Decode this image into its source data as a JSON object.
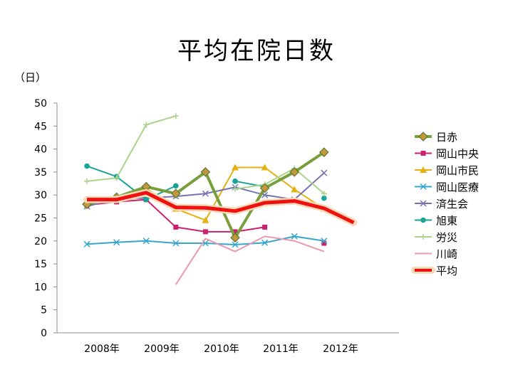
{
  "chart_data": {
    "type": "line",
    "title": "平均在院日数",
    "unit_label": "（日）",
    "ylim": [
      0,
      50
    ],
    "y_ticks": [
      0,
      5,
      10,
      15,
      20,
      25,
      30,
      35,
      40,
      45,
      50
    ],
    "x_period_labels": [
      "2008年",
      "2009年",
      "2010年",
      "2011年",
      "2012年"
    ],
    "grid": false,
    "legend_position": "right",
    "series": [
      {
        "name": "日赤",
        "color": "#77a03c",
        "marker": "diamond",
        "width": 4,
        "values": [
          28.0,
          29.5,
          31.8,
          30.3,
          35.0,
          20.7,
          31.5,
          35.0,
          39.3,
          null
        ]
      },
      {
        "name": "岡山中央",
        "color": "#cc1f6e",
        "marker": "square",
        "width": 2,
        "values": [
          27.8,
          28.5,
          29.0,
          23.0,
          22.0,
          22.0,
          23.0,
          null,
          19.5,
          null
        ]
      },
      {
        "name": "岡山市民",
        "color": "#e6b010",
        "marker": "triangle",
        "width": 2,
        "values": [
          28.5,
          29.5,
          31.5,
          27.0,
          24.5,
          36.0,
          36.0,
          31.2,
          27.0,
          null
        ]
      },
      {
        "name": "岡山医療",
        "color": "#36a6cc",
        "marker": "x",
        "width": 2,
        "values": [
          19.3,
          19.7,
          20.0,
          19.5,
          19.5,
          19.2,
          19.6,
          21.0,
          20.0,
          null
        ]
      },
      {
        "name": "済生会",
        "color": "#7474b0",
        "marker": "x",
        "width": 2,
        "values": [
          27.5,
          29.3,
          29.3,
          29.7,
          30.3,
          31.7,
          30.0,
          29.0,
          34.8,
          null
        ]
      },
      {
        "name": "旭東",
        "color": "#17a497",
        "marker": "circle",
        "width": 2,
        "values": [
          36.3,
          34.0,
          29.0,
          32.0,
          null,
          33.0,
          31.8,
          null,
          29.3,
          null
        ]
      },
      {
        "name": "労災",
        "color": "#a8d48a",
        "marker": "plus",
        "width": 2,
        "values": [
          33.0,
          33.7,
          45.3,
          47.2,
          null,
          31.3,
          32.3,
          35.8,
          30.3,
          null
        ]
      },
      {
        "name": "川崎",
        "color": "#ec98ac",
        "marker": "none",
        "width": 2,
        "values": [
          null,
          null,
          null,
          10.5,
          20.5,
          17.7,
          21.0,
          20.0,
          17.7,
          null
        ]
      },
      {
        "name": "平均",
        "color": "#ee1111",
        "marker": "none",
        "width": 5,
        "outline": "#fbd8b6",
        "values": [
          29.0,
          29.0,
          30.5,
          27.3,
          27.2,
          26.5,
          28.3,
          28.7,
          27.1,
          24.0
        ]
      }
    ]
  }
}
